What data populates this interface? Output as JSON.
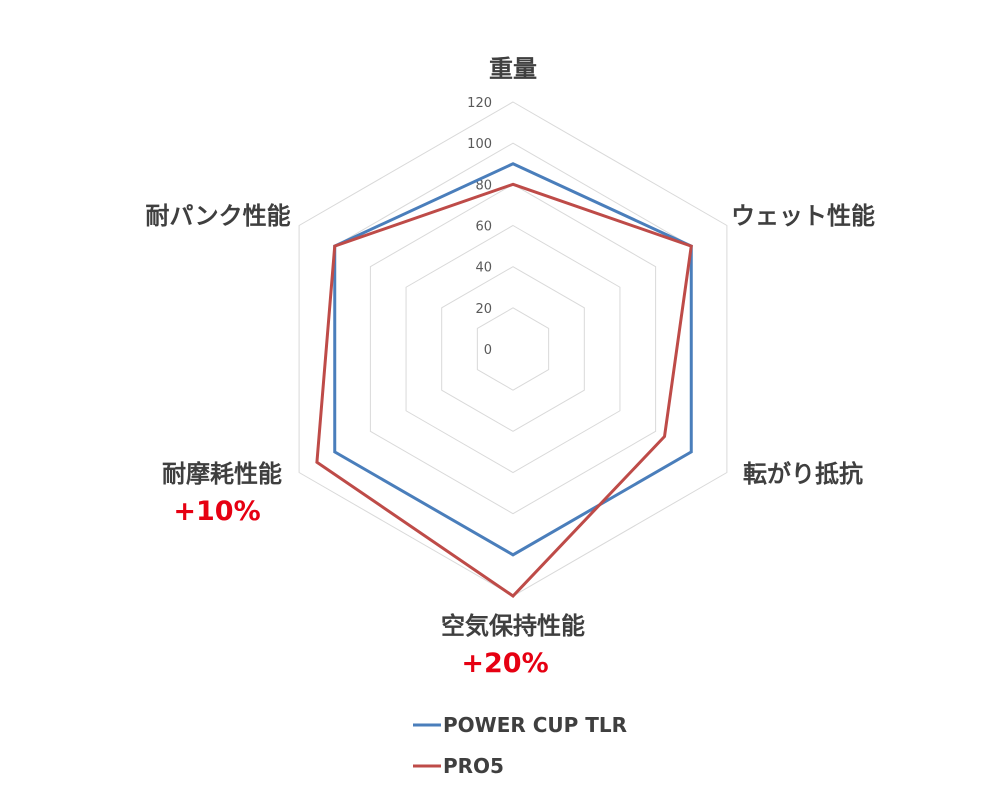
{
  "chart_data": {
    "type": "radar",
    "axes": [
      "重量",
      "ウェット性能",
      "転がり抵抗",
      "空気保持性能",
      "耐摩耗性能",
      "耐パンク性能"
    ],
    "ticks": [
      "0",
      "20",
      "40",
      "60",
      "80",
      "100",
      "120"
    ],
    "rlim": [
      0,
      120
    ],
    "grid": true,
    "legend_position": "bottom",
    "annotations": [
      {
        "axis": "耐摩耗性能",
        "text": "+10%",
        "color": "#e60012"
      },
      {
        "axis": "空気保持性能",
        "text": "+20%",
        "color": "#e60012"
      }
    ],
    "series": [
      {
        "name": "POWER CUP TLR",
        "color": "#4a7ebb",
        "values": [
          90,
          100,
          100,
          100,
          100,
          100
        ]
      },
      {
        "name": "PRO5",
        "color": "#be4b48",
        "values": [
          80,
          100,
          85,
          120,
          110,
          100
        ]
      }
    ]
  }
}
